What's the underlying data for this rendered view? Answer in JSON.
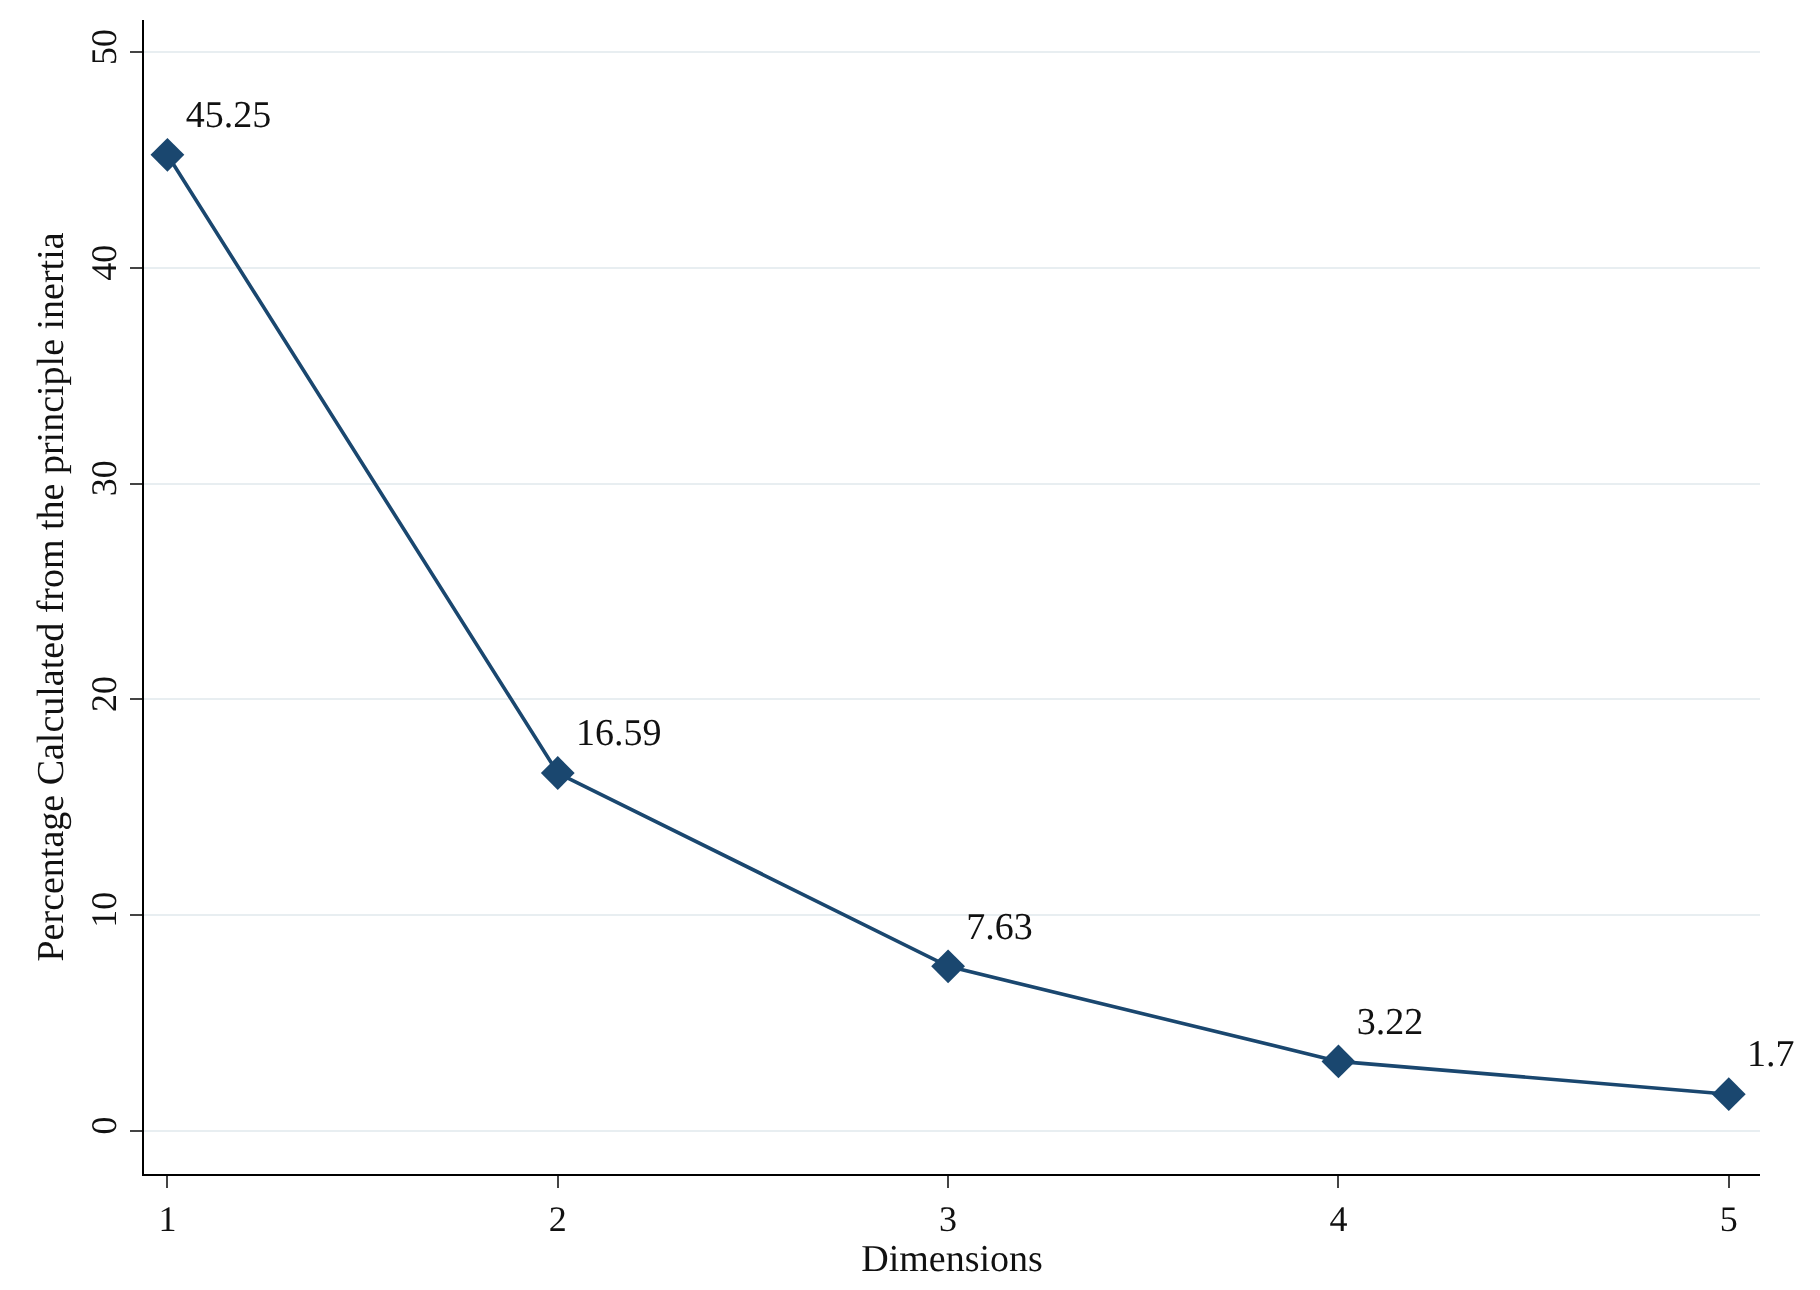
{
  "chart_data": {
    "type": "line",
    "xlabel": "Dimensions",
    "ylabel": "Percentage Calculated from the principle inertia",
    "x": [
      1,
      2,
      3,
      4,
      5
    ],
    "series": [
      {
        "color": "#1a476f",
        "values": [
          45.25,
          16.59,
          7.63,
          3.22,
          1.7
        ]
      }
    ],
    "xlim": [
      0.94,
      5.08
    ],
    "xticks": [
      1,
      2,
      3,
      4,
      5
    ],
    "ylim": [
      -2,
      51.5
    ],
    "yticks": [
      0,
      10,
      20,
      30,
      40,
      50
    ],
    "grid": "y",
    "marker": "diamond",
    "line_style": "solid",
    "data_labels": true
  }
}
